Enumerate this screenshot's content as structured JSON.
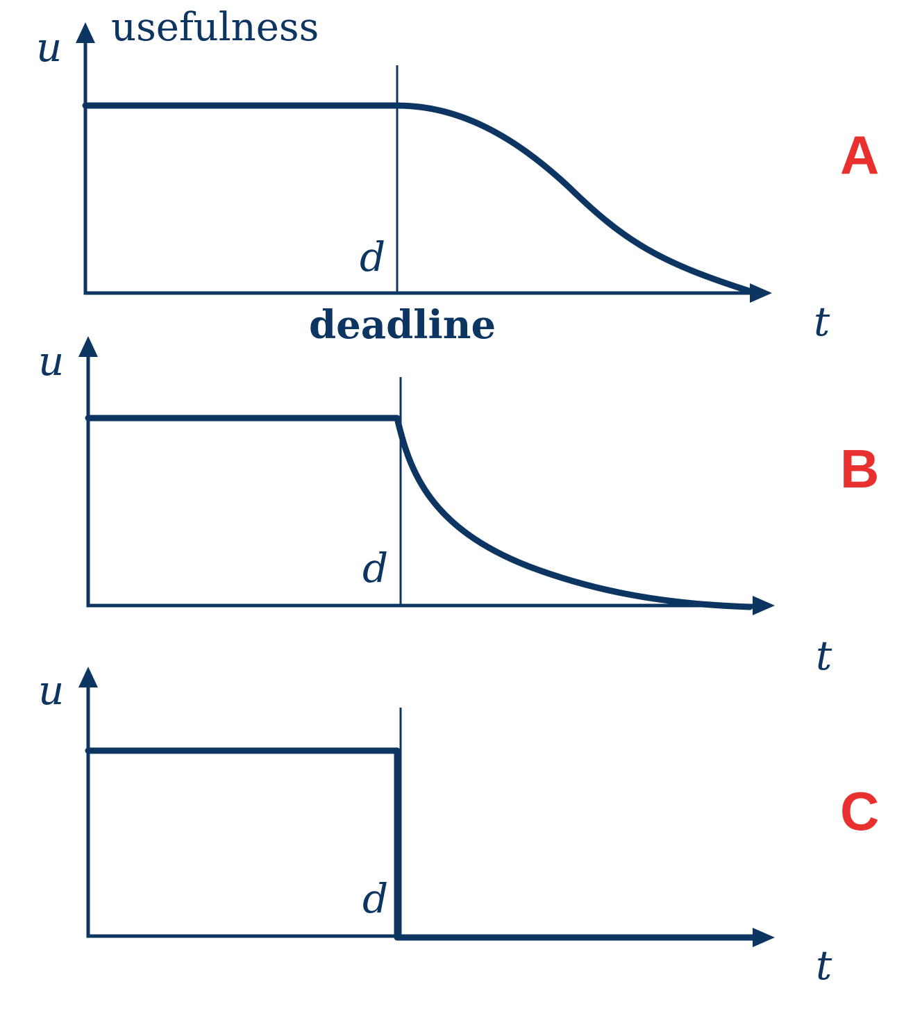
{
  "colors": {
    "ink": "#0d3561",
    "accent": "#e8302e",
    "background": "#ffffff"
  },
  "labels": {
    "usefulness": "usefulness",
    "deadline": "deadline"
  },
  "panels": [
    {
      "id": "A",
      "letter": "A",
      "curve": "sigmoid-decay",
      "y_axis": "u",
      "x_axis": "t",
      "deadline_mark": "d"
    },
    {
      "id": "B",
      "letter": "B",
      "curve": "exponential-decay",
      "y_axis": "u",
      "x_axis": "t",
      "deadline_mark": "d"
    },
    {
      "id": "C",
      "letter": "C",
      "curve": "step-drop",
      "y_axis": "u",
      "x_axis": "t",
      "deadline_mark": "d"
    }
  ]
}
